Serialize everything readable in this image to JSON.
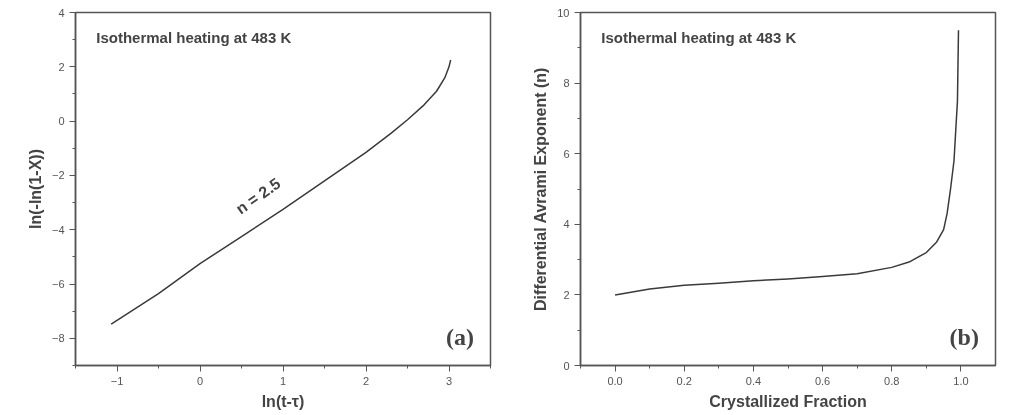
{
  "chart_data": [
    {
      "type": "line",
      "xlabel": "ln(t-τ)",
      "ylabel": "ln(-ln(1-X))",
      "grid": false,
      "marker": "none",
      "line_style": "solid",
      "annotations": [
        "Isothermal heating at 483 K",
        "(a)",
        "n = 2.5"
      ],
      "xlim": [
        -1.5,
        3.5
      ],
      "ylim": [
        -9,
        4
      ],
      "xticks": [
        -1,
        0,
        1,
        2,
        3,
        {
          "value": -1.5,
          "label": null
        },
        {
          "value": -0.5,
          "label": null
        },
        {
          "value": 0.5,
          "label": null
        },
        {
          "value": 1.5,
          "label": null
        },
        {
          "value": 2.5,
          "label": null
        },
        {
          "value": 3.5,
          "label": null
        }
      ],
      "yticks": [
        -8,
        -6,
        -4,
        -2,
        0,
        2,
        4,
        {
          "value": -9,
          "label": null
        },
        {
          "value": -7,
          "label": null
        },
        {
          "value": -5,
          "label": null
        },
        {
          "value": -3,
          "label": null
        },
        {
          "value": -1,
          "label": null
        },
        {
          "value": 1,
          "label": null
        },
        {
          "value": 3,
          "label": null
        }
      ],
      "series": [
        {
          "color": "#3a3a3a",
          "x": [
            -1.07,
            -0.5,
            0,
            0.5,
            1,
            1.5,
            2,
            2.3,
            2.5,
            2.7,
            2.85,
            2.95,
            3.0,
            3.02
          ],
          "values": [
            -7.48,
            -6.35,
            -5.25,
            -4.25,
            -3.25,
            -2.2,
            -1.15,
            -0.45,
            0.05,
            0.6,
            1.1,
            1.6,
            2.0,
            2.25
          ]
        }
      ]
    },
    {
      "type": "line",
      "xlabel": "Crystallized Fraction",
      "ylabel": "Differential Avrami Exponent (n)",
      "grid": false,
      "marker": "none",
      "line_style": "solid",
      "annotations": [
        "Isothermal heating at 483 K",
        "(b)"
      ],
      "xlim": [
        -0.1,
        1.1
      ],
      "ylim": [
        0,
        10
      ],
      "xticks": [
        {
          "value": 0,
          "label": "0.0"
        },
        0.2,
        0.4,
        0.6,
        0.8,
        {
          "value": 1,
          "label": "1.0"
        },
        {
          "value": -0.1,
          "label": null
        },
        {
          "value": 0.1,
          "label": null
        },
        {
          "value": 0.3,
          "label": null
        },
        {
          "value": 0.5,
          "label": null
        },
        {
          "value": 0.7,
          "label": null
        },
        {
          "value": 0.9,
          "label": null
        }
      ],
      "yticks": [
        0,
        2,
        4,
        6,
        8,
        10,
        {
          "value": 1,
          "label": null
        },
        {
          "value": 3,
          "label": null
        },
        {
          "value": 5,
          "label": null
        },
        {
          "value": 7,
          "label": null
        },
        {
          "value": 9,
          "label": null
        }
      ],
      "series": [
        {
          "color": "#3a3a3a",
          "x": [
            0,
            0.1,
            0.2,
            0.3,
            0.4,
            0.5,
            0.6,
            0.7,
            0.8,
            0.85,
            0.9,
            0.93,
            0.95,
            0.96,
            0.97,
            0.98,
            0.99,
            0.993
          ],
          "values": [
            2.0,
            2.17,
            2.27,
            2.33,
            2.4,
            2.45,
            2.52,
            2.6,
            2.78,
            2.93,
            3.2,
            3.5,
            3.85,
            4.3,
            5.0,
            5.8,
            7.5,
            9.5
          ]
        }
      ]
    }
  ]
}
